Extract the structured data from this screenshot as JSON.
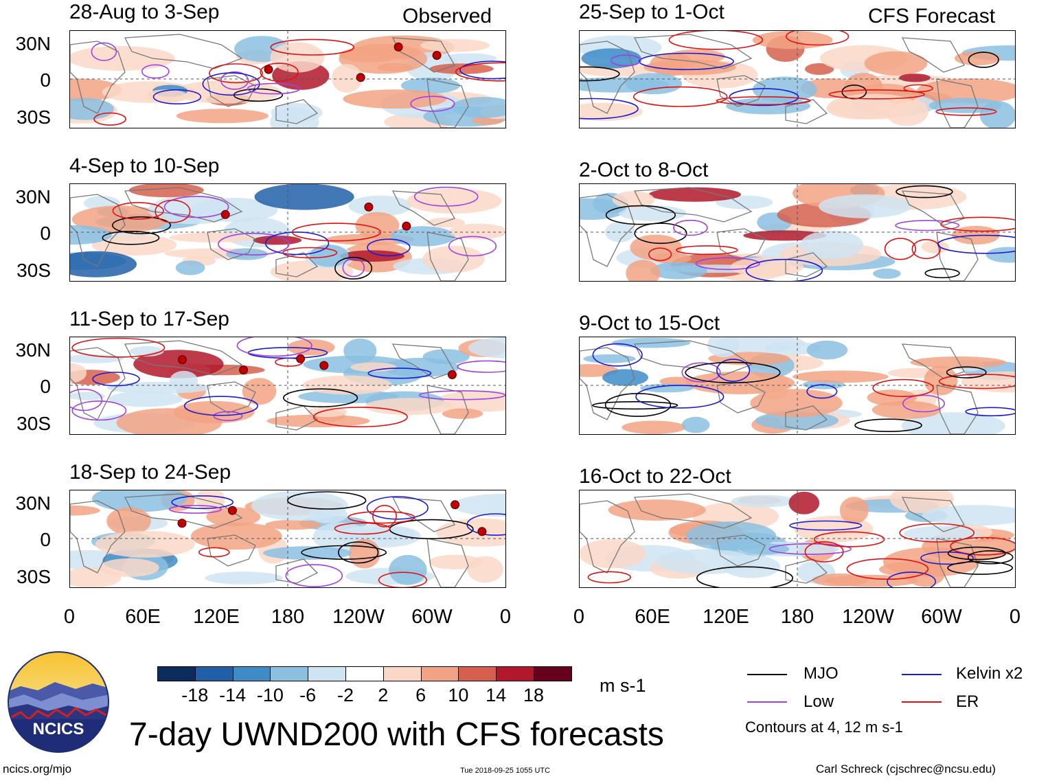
{
  "title": "7-day UWND200 with CFS forecasts",
  "observed_label": "Observed",
  "forecast_label": "CFS Forecast",
  "lat_labels": [
    "30N",
    "0",
    "30S"
  ],
  "lon_labels": [
    "0",
    "60E",
    "120E",
    "180",
    "120W",
    "60W",
    "0"
  ],
  "left_panels": [
    {
      "title": "28-Aug to 3-Sep"
    },
    {
      "title": "4-Sep to 10-Sep"
    },
    {
      "title": "11-Sep to 17-Sep"
    },
    {
      "title": "18-Sep to 24-Sep"
    }
  ],
  "right_panels": [
    {
      "title": "25-Sep to 1-Oct"
    },
    {
      "title": "2-Oct to 8-Oct"
    },
    {
      "title": "9-Oct to 15-Oct"
    },
    {
      "title": "16-Oct to 22-Oct"
    }
  ],
  "colorbar": {
    "units": "m s-1",
    "tick_labels": [
      "-18",
      "-14",
      "-10",
      "-6",
      "-2",
      "2",
      "6",
      "10",
      "14",
      "18"
    ],
    "colors": [
      "#0b2c5c",
      "#2060a8",
      "#3d8cc8",
      "#8bbfe0",
      "#cfe4f2",
      "#ffffff",
      "#fad8c8",
      "#f2a384",
      "#d6604d",
      "#b2182b",
      "#67001f"
    ]
  },
  "legend": {
    "items": [
      {
        "label": "MJO",
        "color": "#000000"
      },
      {
        "label": "Kelvin x2",
        "color": "#1a1ad6"
      },
      {
        "label": "Low",
        "color": "#a040e0"
      },
      {
        "label": "ER",
        "color": "#e01010"
      }
    ],
    "note": "Contours at 4, 12 m s-1"
  },
  "logo_text": "NCICS",
  "url": "ncics.org/mjo",
  "timestamp": "Tue 2018-09-25 1055 UTC",
  "credit": "Carl Schreck (cjschrec@ncsu.edu)"
}
